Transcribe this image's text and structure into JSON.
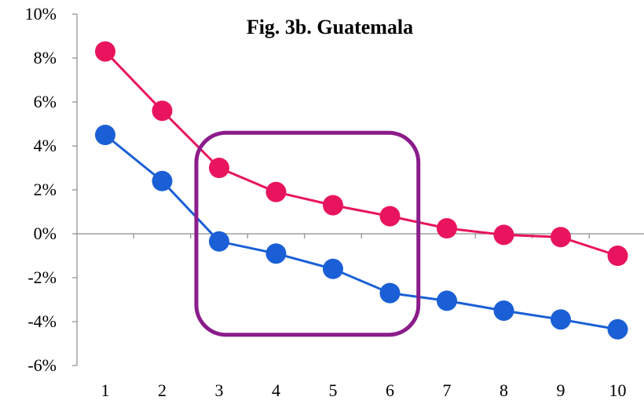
{
  "chart_data": {
    "type": "line",
    "title": "Fig. 3b. Guatemala",
    "xlabel": "",
    "ylabel": "",
    "categories": [
      "1",
      "2",
      "3",
      "4",
      "5",
      "6",
      "7",
      "8",
      "9",
      "10"
    ],
    "ylim": [
      -6,
      10
    ],
    "yticks": [
      -6,
      -4,
      -2,
      0,
      2,
      4,
      6,
      8,
      10
    ],
    "ytick_labels": [
      "-6%",
      "-4%",
      "-2%",
      "0%",
      "2%",
      "4%",
      "6%",
      "8%",
      "10%"
    ],
    "grid": false,
    "legend": "none",
    "series": [
      {
        "color": "#E8145E",
        "values": [
          8.3,
          5.6,
          3.0,
          1.9,
          1.3,
          0.8,
          0.25,
          -0.05,
          -0.15,
          -1.0
        ]
      },
      {
        "color": "#1A5FD6",
        "values": [
          4.5,
          2.4,
          -0.35,
          -0.9,
          -1.6,
          -2.7,
          -3.05,
          -3.5,
          -3.9,
          -4.35
        ]
      }
    ],
    "annotations": [
      {
        "type": "rounded-rectangle",
        "color": "#8B1C8B",
        "x_from": 2.6,
        "x_to": 6.5,
        "y_from": -4.6,
        "y_to": 4.6
      }
    ]
  }
}
